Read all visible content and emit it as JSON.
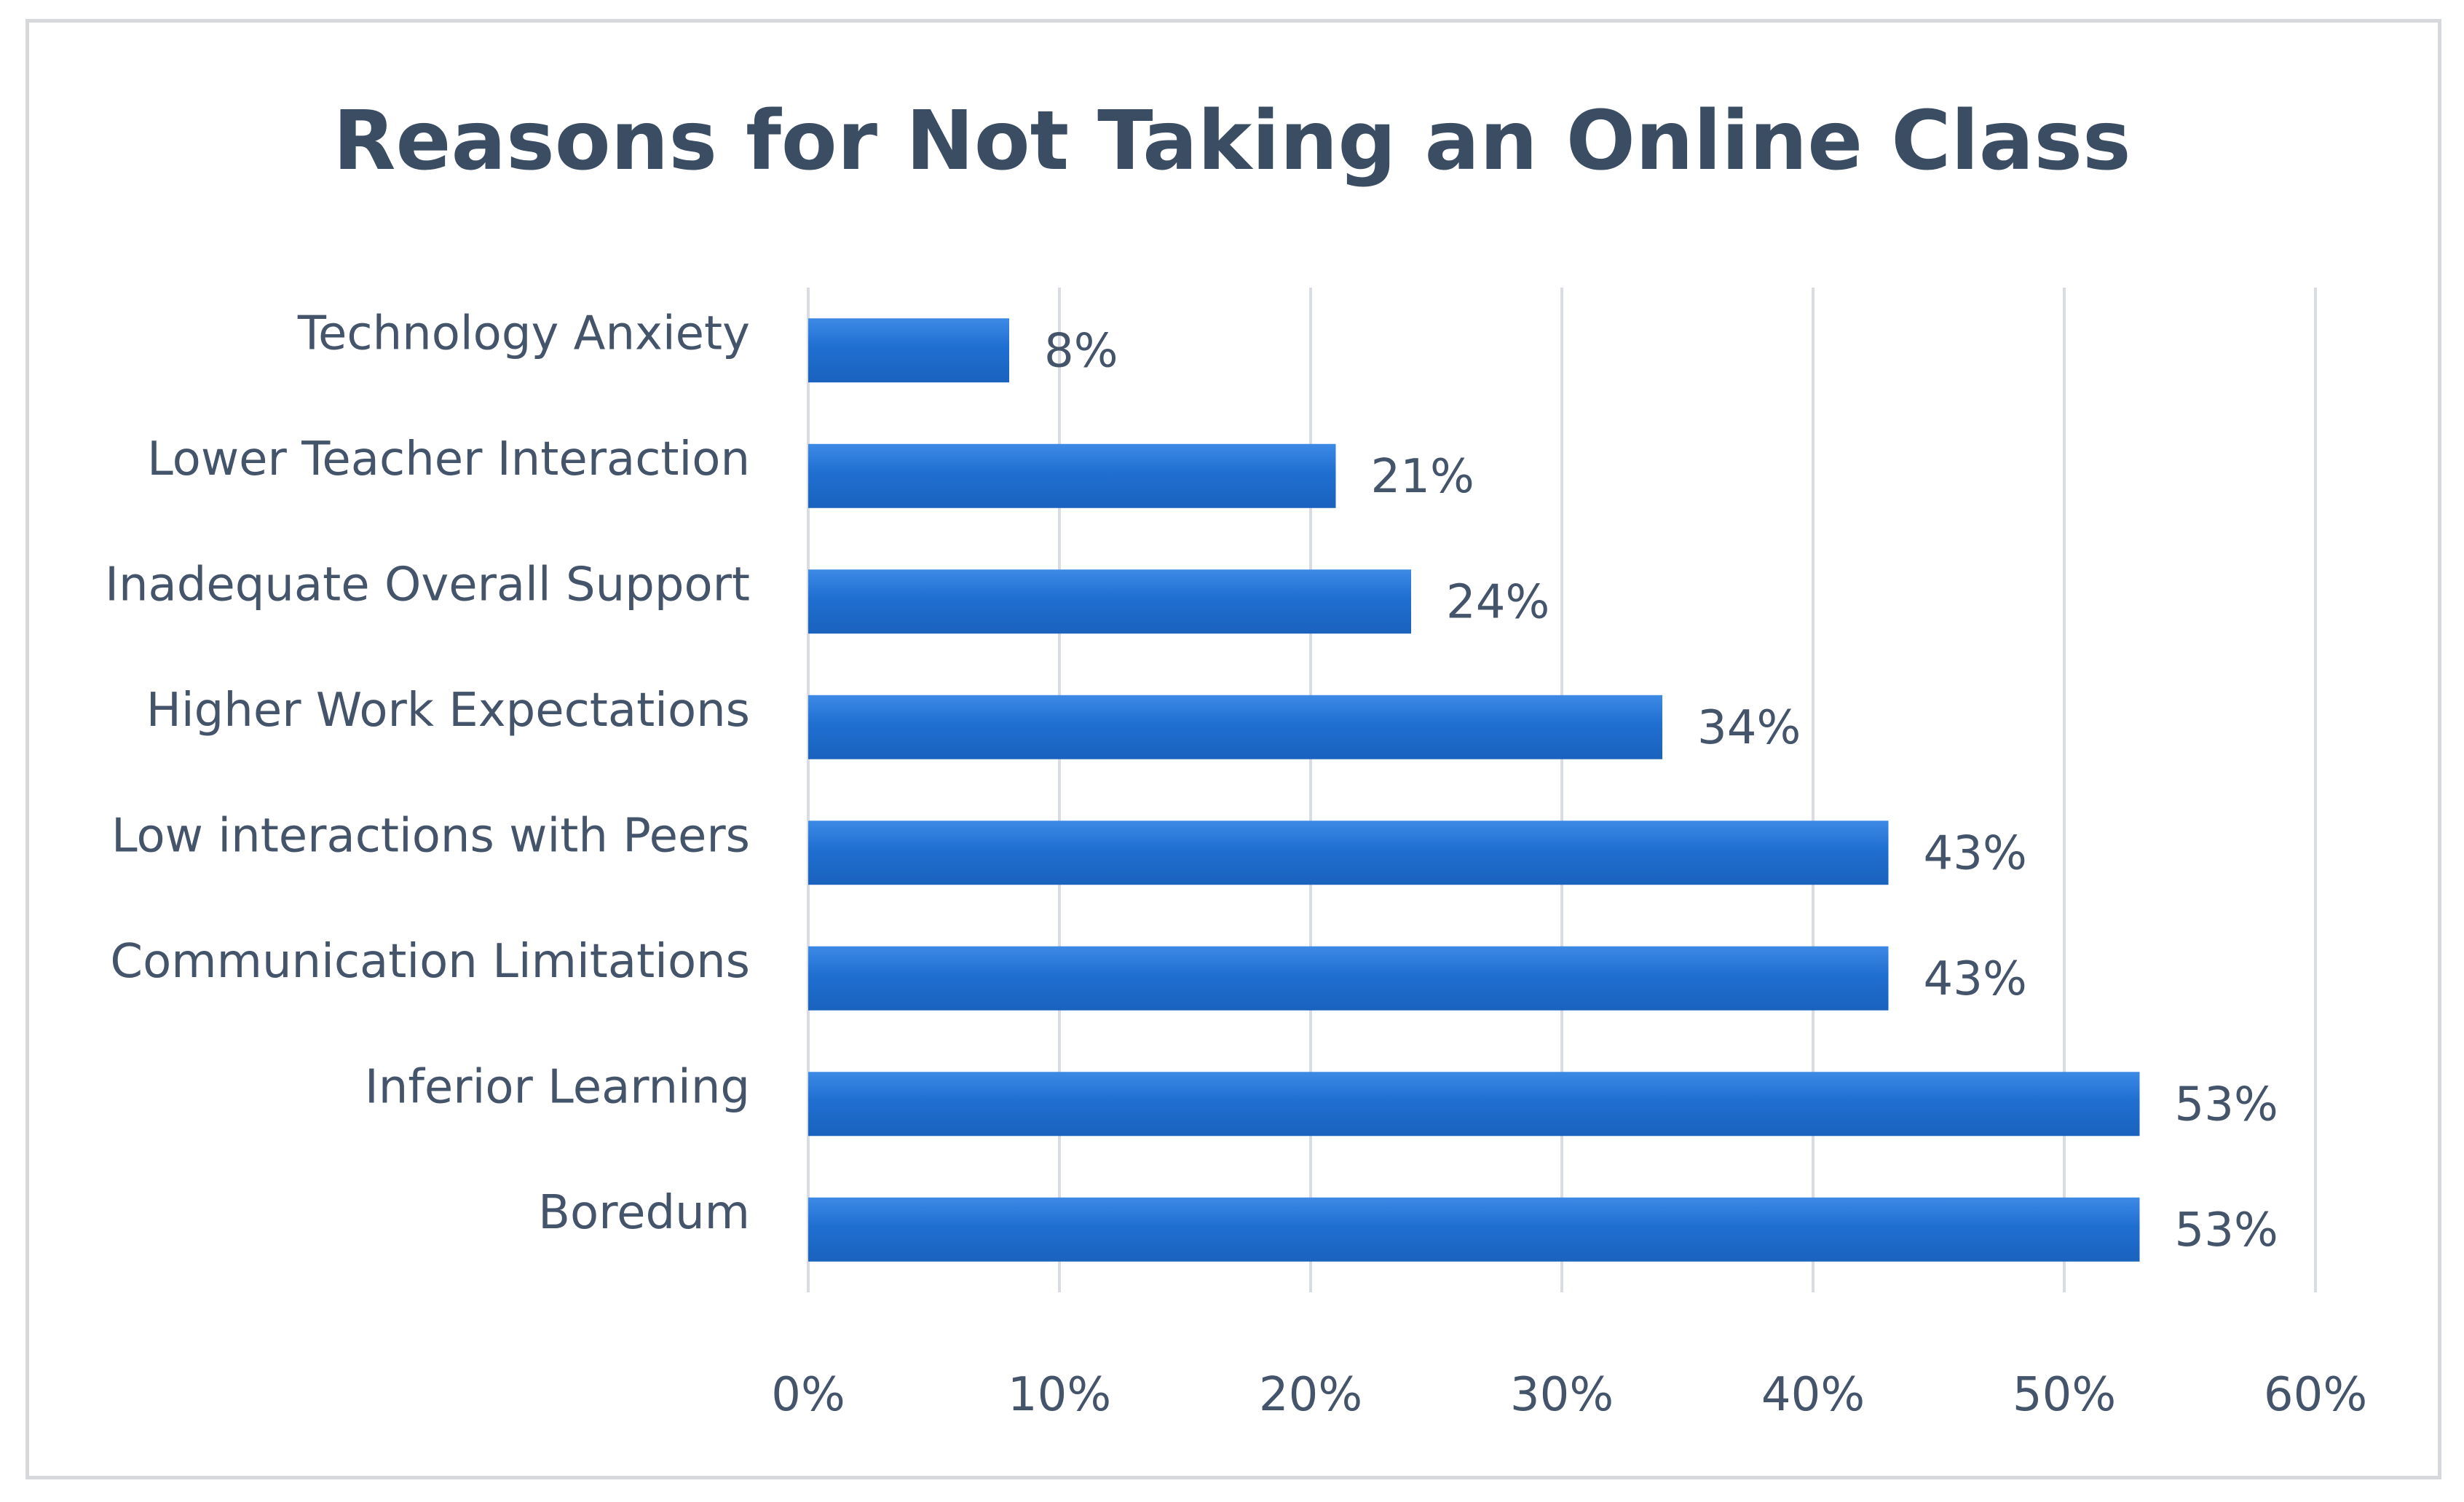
{
  "chart_data": {
    "type": "bar",
    "orientation": "horizontal",
    "title": "Reasons for Not Taking an Online Class",
    "xlabel": "",
    "ylabel": "",
    "categories": [
      "Technology Anxiety",
      "Lower Teacher Interaction",
      "Inadequate Overall Support",
      "Higher Work Expectations",
      "Low interactions with Peers",
      "Communication Limitations",
      "Inferior Learning",
      "Boredum"
    ],
    "values": [
      8,
      21,
      24,
      34,
      43,
      43,
      53,
      53
    ],
    "data_labels": [
      "8%",
      "21%",
      "24%",
      "34%",
      "43%",
      "43%",
      "53%",
      "53%"
    ],
    "xlim": [
      0,
      60
    ],
    "ticks": [
      0,
      10,
      20,
      30,
      40,
      50,
      60
    ],
    "tick_labels": [
      "0%",
      "10%",
      "20%",
      "30%",
      "40%",
      "50%",
      "60%"
    ],
    "grid": "vertical",
    "legend": "none",
    "bar_color": "#1f6fd1",
    "bar_color_highlight": "#3d8ae6"
  }
}
